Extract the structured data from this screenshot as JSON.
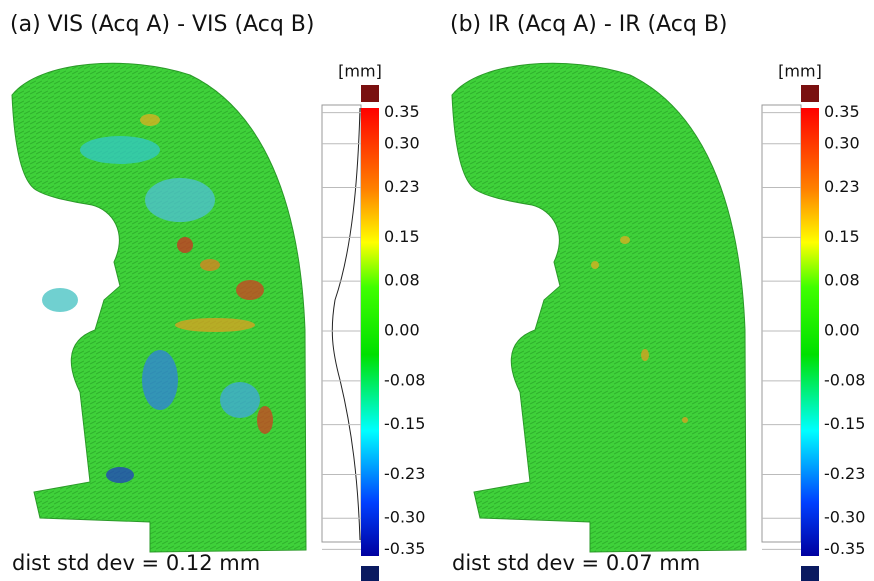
{
  "panels": [
    {
      "title": "(a) VIS (Acq A) - VIS (Acq B)",
      "unit": "[mm]",
      "scale_labels": [
        "0.35",
        "0.30",
        "0.23",
        "0.15",
        "0.08",
        "0.00",
        "-0.08",
        "-0.15",
        "-0.23",
        "-0.30",
        "-0.35"
      ],
      "caption": "dist std dev = 0.12 mm"
    },
    {
      "title": "(b) IR (Acq A) - IR (Acq B)",
      "unit": "[mm]",
      "scale_labels": [
        "0.35",
        "0.30",
        "0.23",
        "0.15",
        "0.08",
        "0.00",
        "-0.08",
        "-0.15",
        "-0.23",
        "-0.30",
        "-0.35"
      ],
      "caption": "dist std dev = 0.07 mm"
    }
  ]
}
